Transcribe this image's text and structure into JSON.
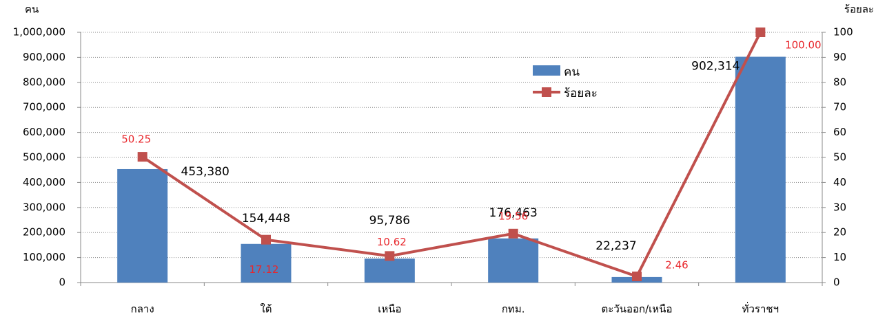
{
  "chart_data": {
    "type": "bar",
    "y_label": "คน",
    "y2_label": "ร้อยละ",
    "categories": [
      "กลาง",
      "ใต้",
      "เหนือ",
      "กทม.",
      "ตะวันออก/เหนือ",
      "ทั่วราชฯ"
    ],
    "series": [
      {
        "name": "คน",
        "type": "bar",
        "color": "#4f81bd",
        "values": [
          453380,
          154448,
          95786,
          176463,
          22237,
          902314
        ],
        "value_labels": [
          "453,380",
          "154,448",
          "95,786",
          "176,463",
          "22,237",
          "902,314"
        ]
      },
      {
        "name": "ร้อยละ",
        "type": "line",
        "axis": "y2",
        "color": "#c0504d",
        "values": [
          50.25,
          17.12,
          10.62,
          19.56,
          2.46,
          100
        ],
        "value_labels": [
          "50.25",
          "17.12",
          "10.62",
          "19.56",
          "2.46",
          "100.00"
        ]
      }
    ],
    "ylim": [
      0,
      1000000
    ],
    "yticks": [
      0,
      {
        "value": 100000,
        "label": "100,000"
      },
      {
        "value": 200000,
        "label": "200,000"
      },
      {
        "value": 300000,
        "label": "300,000"
      },
      {
        "value": 400000,
        "label": "400,000"
      },
      {
        "value": 500000,
        "label": "500,000"
      },
      {
        "value": 600000,
        "label": "600,000"
      },
      {
        "value": 700000,
        "label": "700,000"
      },
      {
        "value": 800000,
        "label": "800,000"
      },
      {
        "value": 900000,
        "label": "900,000"
      },
      {
        "value": 1000000,
        "label": "1,000,000"
      }
    ],
    "y2lim": [
      0,
      100
    ],
    "y2ticks": [
      0,
      10,
      20,
      30,
      40,
      50,
      60,
      70,
      80,
      90,
      100
    ],
    "grid": true
  }
}
